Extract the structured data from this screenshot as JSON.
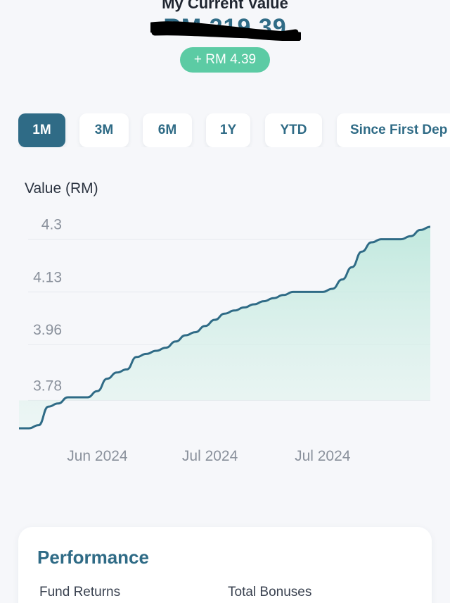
{
  "header": {
    "title": "My Current Value",
    "value": "RM 219.39",
    "gain": "+ RM 4.39"
  },
  "range_tabs": [
    {
      "label": "1M",
      "active": true
    },
    {
      "label": "3M",
      "active": false
    },
    {
      "label": "6M",
      "active": false
    },
    {
      "label": "1Y",
      "active": false
    },
    {
      "label": "YTD",
      "active": false
    },
    {
      "label": "Since First Dep",
      "active": false
    }
  ],
  "chart": {
    "ylabel": "Value (RM)"
  },
  "chart_data": {
    "type": "area",
    "ylabel": "Value (RM)",
    "yticks": [
      "4.3",
      "4.13",
      "3.96",
      "3.78"
    ],
    "ytick_values": [
      4.3,
      4.13,
      3.96,
      3.78
    ],
    "xticks": [
      "Jun 2024",
      "Jul 2024",
      "Jul 2024"
    ],
    "xtick_positions": [
      8,
      19.5,
      31
    ],
    "x": [
      0,
      1,
      2,
      3,
      4,
      5,
      6,
      7,
      8,
      9,
      10,
      11,
      12,
      13,
      14,
      15,
      16,
      17,
      18,
      19,
      20,
      21,
      22,
      23,
      24,
      25,
      26,
      27,
      28,
      29,
      30,
      31,
      32,
      33,
      34,
      35,
      36,
      37,
      38,
      39,
      40,
      41,
      42
    ],
    "values": [
      3.69,
      3.69,
      3.7,
      3.76,
      3.77,
      3.79,
      3.79,
      3.79,
      3.81,
      3.85,
      3.87,
      3.88,
      3.92,
      3.93,
      3.94,
      3.95,
      3.97,
      3.99,
      4.0,
      4.02,
      4.04,
      4.06,
      4.07,
      4.08,
      4.09,
      4.1,
      4.11,
      4.12,
      4.13,
      4.13,
      4.13,
      4.13,
      4.14,
      4.17,
      4.21,
      4.26,
      4.29,
      4.3,
      4.3,
      4.3,
      4.31,
      4.33,
      4.34
    ],
    "ylim": [
      3.64,
      4.39
    ],
    "series_color": "#2f6b86",
    "fill_color": "#bfe8dd",
    "grid": true
  },
  "performance": {
    "title": "Performance",
    "fund_returns_label": "Fund Returns",
    "total_bonuses_label": "Total Bonuses"
  }
}
